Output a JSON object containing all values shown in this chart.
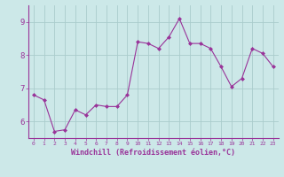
{
  "x": [
    0,
    1,
    2,
    3,
    4,
    5,
    6,
    7,
    8,
    9,
    10,
    11,
    12,
    13,
    14,
    15,
    16,
    17,
    18,
    19,
    20,
    21,
    22,
    23
  ],
  "y": [
    6.8,
    6.65,
    5.7,
    5.75,
    6.35,
    6.2,
    6.5,
    6.45,
    6.45,
    6.8,
    8.4,
    8.35,
    8.2,
    8.55,
    9.1,
    8.35,
    8.35,
    8.2,
    7.65,
    7.05,
    7.3,
    8.2,
    8.05,
    7.65
  ],
  "line_color": "#993399",
  "marker_color": "#993399",
  "bg_color": "#cce8e8",
  "grid_color": "#aacccc",
  "axis_label_color": "#993399",
  "tick_color": "#993399",
  "xlabel": "Windchill (Refroidissement éolien,°C)",
  "ylim": [
    5.5,
    9.5
  ],
  "xlim": [
    -0.5,
    23.5
  ],
  "yticks": [
    6,
    7,
    8,
    9
  ],
  "spine_color": "#993399"
}
